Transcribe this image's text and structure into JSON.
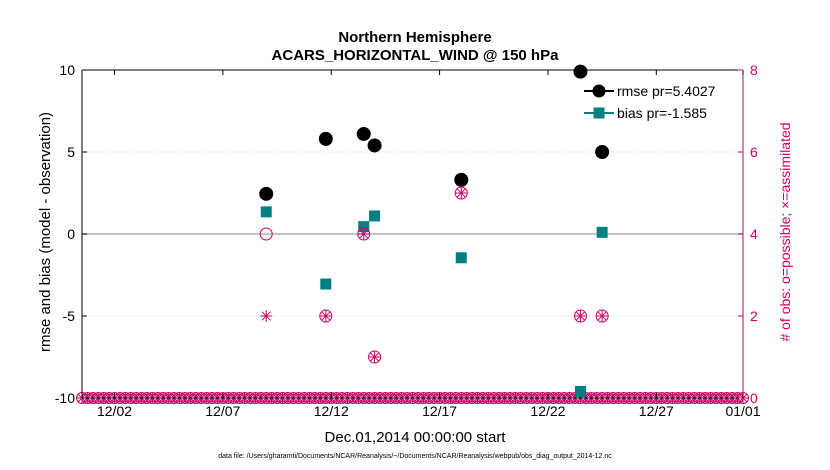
{
  "chart_data": {
    "type": "scatter",
    "title": "Northern Hemisphere",
    "subtitle": "ACARS_HORIZONTAL_WIND @ 150 hPa",
    "xlabel": "Dec.01,2014 00:00:00 start",
    "ylabel_left": "rmse and bias (model - observation)",
    "ylabel_right": "# of obs: o=possible; ×=assimilated",
    "xlim": [
      0.5,
      31.0
    ],
    "ylim_left": [
      -10,
      10
    ],
    "ylim_right": [
      0,
      8
    ],
    "x_ticks": [
      {
        "value": 2,
        "label": "12/02"
      },
      {
        "value": 7,
        "label": "12/07"
      },
      {
        "value": 12,
        "label": "12/12"
      },
      {
        "value": 17,
        "label": "12/17"
      },
      {
        "value": 22,
        "label": "12/22"
      },
      {
        "value": 27,
        "label": "12/27"
      },
      {
        "value": 32,
        "label": "01/01"
      }
    ],
    "y_ticks_left": [
      {
        "value": 10,
        "label": "10"
      },
      {
        "value": 5,
        "label": "5"
      },
      {
        "value": 0,
        "label": "0"
      },
      {
        "value": -5,
        "label": "-5"
      },
      {
        "value": -10,
        "label": "-10"
      }
    ],
    "y_ticks_right": [
      {
        "value": 8,
        "label": "8"
      },
      {
        "value": 6,
        "label": "6"
      },
      {
        "value": 4,
        "label": "4"
      },
      {
        "value": 2,
        "label": "2"
      },
      {
        "value": 0,
        "label": "0"
      }
    ],
    "series": [
      {
        "name": "rmse",
        "legend": "rmse pr=5.4027",
        "color": "#000000",
        "marker": "circle",
        "axis": "left",
        "points": [
          [
            9.0,
            2.45
          ],
          [
            11.75,
            5.8
          ],
          [
            13.5,
            6.1
          ],
          [
            14.0,
            5.4
          ],
          [
            18.0,
            3.3
          ],
          [
            23.5,
            9.9
          ],
          [
            24.5,
            5.0
          ]
        ]
      },
      {
        "name": "bias",
        "legend": "bias pr=-1.585",
        "color": "#008080",
        "marker": "square",
        "axis": "left",
        "points": [
          [
            9.0,
            1.35
          ],
          [
            11.75,
            -3.05
          ],
          [
            13.5,
            0.45
          ],
          [
            14.0,
            1.1
          ],
          [
            18.0,
            -1.45
          ],
          [
            23.5,
            -9.6
          ],
          [
            24.5,
            0.1
          ]
        ]
      },
      {
        "name": "obs_possible",
        "color": "#cc0066",
        "marker": "open-circle",
        "axis": "right",
        "points": [
          [
            9.0,
            4
          ],
          [
            11.75,
            2
          ],
          [
            13.5,
            4
          ],
          [
            14.0,
            1
          ],
          [
            18.0,
            5
          ],
          [
            23.5,
            2
          ],
          [
            24.5,
            2
          ]
        ]
      },
      {
        "name": "obs_assimilated",
        "color": "#cc0066",
        "marker": "asterisk",
        "axis": "right",
        "points": [
          [
            9.0,
            2
          ],
          [
            11.75,
            2
          ],
          [
            13.5,
            4
          ],
          [
            14.0,
            1
          ],
          [
            18.0,
            5
          ],
          [
            23.5,
            2
          ],
          [
            24.5,
            2
          ]
        ]
      }
    ],
    "baseline_obs_count": 0,
    "baseline_start": 0.5,
    "baseline_end": 31.0,
    "baseline_step": 0.25
  },
  "footer": {
    "data_file": "data file: /Users/gharamti/Documents/NCAR/Reanalysis/~/Documents/NCAR/Reanalysis/webpub/obs_diag_output_2014-12.nc"
  },
  "colors": {
    "rmse": "#000000",
    "bias": "#008080",
    "obs": "#cc0066",
    "zero_line": "#b0b0b0",
    "grid": "#e0a0b8"
  }
}
